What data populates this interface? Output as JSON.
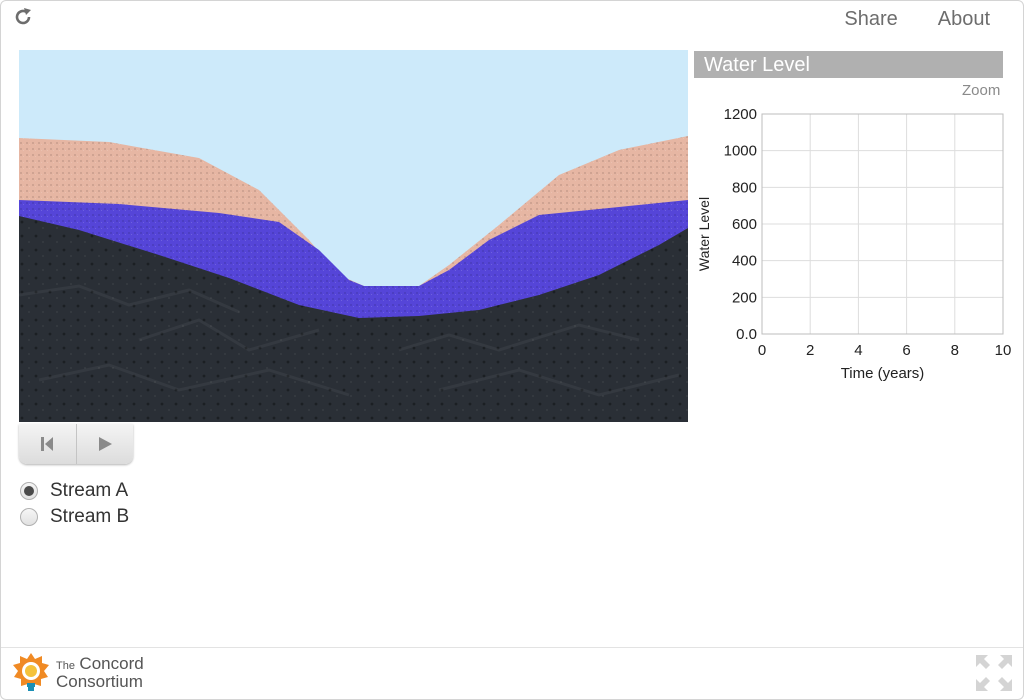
{
  "topnav": {
    "share": "Share",
    "about": "About"
  },
  "graph": {
    "title": "Water Level",
    "zoom_label": "Zoom",
    "chart_data": {
      "type": "line",
      "title": "Water Level",
      "xlabel": "Time (years)",
      "ylabel": "Water Level",
      "xlim": [
        0,
        10
      ],
      "ylim": [
        0,
        1200
      ],
      "x_ticks": [
        "0",
        "2",
        "4",
        "6",
        "8",
        "10"
      ],
      "y_ticks": [
        "0.0",
        "200",
        "400",
        "600",
        "800",
        "1000",
        "1200"
      ],
      "grid": true,
      "series": []
    }
  },
  "controls": {
    "reset_icon": "skip-back-icon",
    "play_icon": "play-icon"
  },
  "radios": [
    {
      "label": "Stream A",
      "checked": true
    },
    {
      "label": "Stream B",
      "checked": false
    }
  ],
  "footer": {
    "logo_line1": "The",
    "logo_line2": "Concord",
    "logo_line3": "Consortium"
  },
  "colors": {
    "sky": "#cdeafa",
    "sand": "#e6b6a3",
    "water": "#5545d8",
    "bedrock": "#2a2f36",
    "graph_header": "#b0b0b0"
  }
}
